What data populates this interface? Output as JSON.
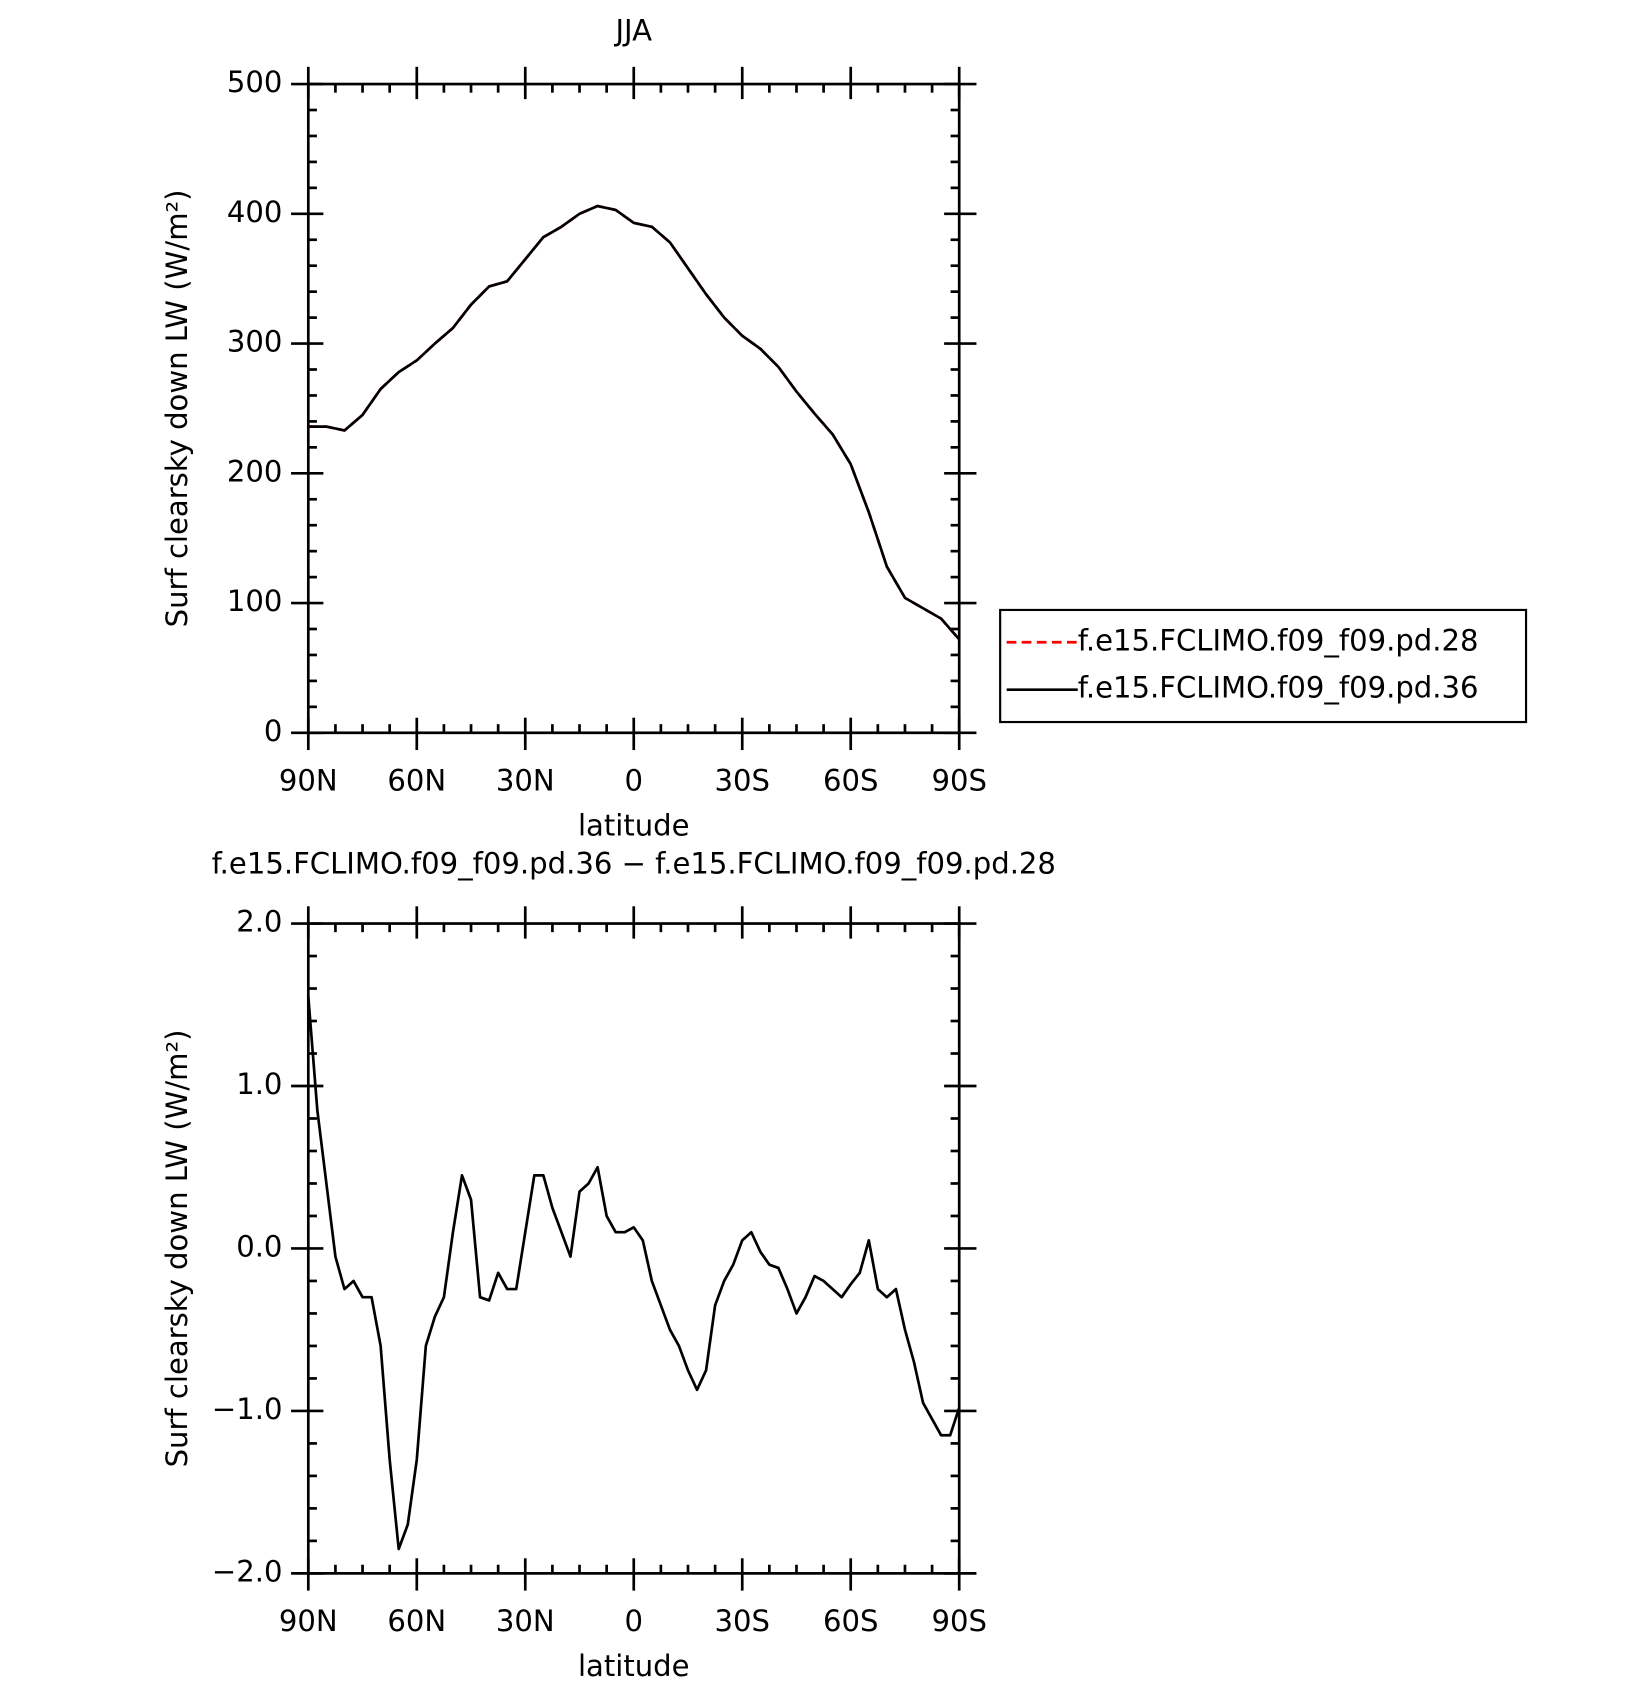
{
  "chart_data": [
    {
      "type": "line",
      "title": "JJA",
      "xlabel": "latitude",
      "ylabel": "Surf clearsky down LW (W/m²)",
      "x": [
        90,
        85,
        80,
        75,
        70,
        65,
        60,
        55,
        50,
        45,
        40,
        35,
        30,
        25,
        20,
        15,
        10,
        5,
        0,
        -5,
        -10,
        -15,
        -20,
        -25,
        -30,
        -35,
        -40,
        -45,
        -50,
        -55,
        -60,
        -65,
        -70,
        -75,
        -80,
        -85,
        -90
      ],
      "xlim": [
        90,
        -90
      ],
      "xticks": [
        {
          "value": 90,
          "label": "90N"
        },
        {
          "value": 60,
          "label": "60N"
        },
        {
          "value": 30,
          "label": "30N"
        },
        0,
        {
          "value": -30,
          "label": "30S"
        },
        {
          "value": -60,
          "label": "60S"
        },
        {
          "value": -90,
          "label": "90S"
        }
      ],
      "ylim": [
        0,
        500
      ],
      "yticks": [
        0,
        100,
        200,
        300,
        400,
        500
      ],
      "legend": "right",
      "series": [
        {
          "name": "f.e15.FCLIMO.f09_f09.pd.28",
          "color": "#ff0000",
          "linestyle": "dashed",
          "values": [
            236,
            236,
            233,
            245,
            265,
            278,
            287,
            300,
            312,
            330,
            344,
            348,
            365,
            382,
            390,
            400,
            406,
            403,
            393,
            390,
            378,
            358,
            338,
            320,
            306,
            296,
            282,
            263,
            246,
            230,
            207,
            170,
            128,
            104,
            96,
            88,
            72
          ]
        },
        {
          "name": "f.e15.FCLIMO.f09_f09.pd.36",
          "color": "#000000",
          "linestyle": "solid",
          "values": [
            236,
            236,
            233,
            245,
            265,
            278,
            287,
            300,
            312,
            330,
            344,
            348,
            365,
            382,
            390,
            400,
            406,
            403,
            393,
            390,
            378,
            358,
            338,
            320,
            306,
            296,
            282,
            263,
            246,
            230,
            207,
            170,
            128,
            104,
            96,
            88,
            72
          ]
        }
      ]
    },
    {
      "type": "line",
      "title": "f.e15.FCLIMO.f09_f09.pd.36 − f.e15.FCLIMO.f09_f09.pd.28",
      "xlabel": "latitude",
      "ylabel": "Surf clearsky down LW (W/m²)",
      "x": [
        90,
        87.5,
        85,
        82.5,
        80,
        77.5,
        75,
        72.5,
        70,
        67.5,
        65,
        62.5,
        60,
        57.5,
        55,
        52.5,
        50,
        47.5,
        45,
        42.5,
        40,
        37.5,
        35,
        32.5,
        30,
        27.5,
        25,
        22.5,
        20,
        17.5,
        15,
        12.5,
        10,
        7.5,
        5,
        2.5,
        0,
        -2.5,
        -5,
        -7.5,
        -10,
        -12.5,
        -15,
        -17.5,
        -20,
        -22.5,
        -25,
        -27.5,
        -30,
        -32.5,
        -35,
        -37.5,
        -40,
        -42.5,
        -45,
        -47.5,
        -50,
        -52.5,
        -55,
        -57.5,
        -60,
        -62.5,
        -65,
        -67.5,
        -70,
        -72.5,
        -75,
        -77.5,
        -80,
        -82.5,
        -85,
        -87.5,
        -90
      ],
      "xlim": [
        90,
        -90
      ],
      "xticks": [
        {
          "value": 90,
          "label": "90N"
        },
        {
          "value": 60,
          "label": "60N"
        },
        {
          "value": 30,
          "label": "30N"
        },
        0,
        {
          "value": -30,
          "label": "30S"
        },
        {
          "value": -60,
          "label": "60S"
        },
        {
          "value": -90,
          "label": "90S"
        }
      ],
      "ylim": [
        -2,
        2
      ],
      "yticks": [
        {
          "value": -2,
          "label": "−2.0"
        },
        {
          "value": -1,
          "label": "−1.0"
        },
        {
          "value": 0,
          "label": "0.0"
        },
        {
          "value": 1,
          "label": "1.0"
        },
        {
          "value": 2,
          "label": "2.0"
        }
      ],
      "series": [
        {
          "color": "#000000",
          "linestyle": "solid",
          "values": [
            1.55,
            0.85,
            0.4,
            -0.05,
            -0.25,
            -0.2,
            -0.3,
            -0.3,
            -0.6,
            -1.3,
            -1.85,
            -1.7,
            -1.3,
            -0.6,
            -0.42,
            -0.3,
            0.1,
            0.45,
            0.3,
            -0.3,
            -0.32,
            -0.15,
            -0.25,
            -0.25,
            0.1,
            0.45,
            0.45,
            0.25,
            0.1,
            -0.05,
            0.35,
            0.4,
            0.5,
            0.2,
            0.1,
            0.1,
            0.13,
            0.05,
            -0.2,
            -0.35,
            -0.5,
            -0.6,
            -0.75,
            -0.87,
            -0.75,
            -0.35,
            -0.2,
            -0.1,
            0.05,
            0.1,
            -0.02,
            -0.1,
            -0.12,
            -0.25,
            -0.4,
            -0.3,
            -0.17,
            -0.2,
            -0.25,
            -0.3,
            -0.22,
            -0.15,
            0.05,
            -0.25,
            -0.3,
            -0.25,
            -0.5,
            -0.7,
            -0.95,
            -1.05,
            -1.15,
            -1.15,
            -0.98
          ]
        }
      ]
    }
  ]
}
